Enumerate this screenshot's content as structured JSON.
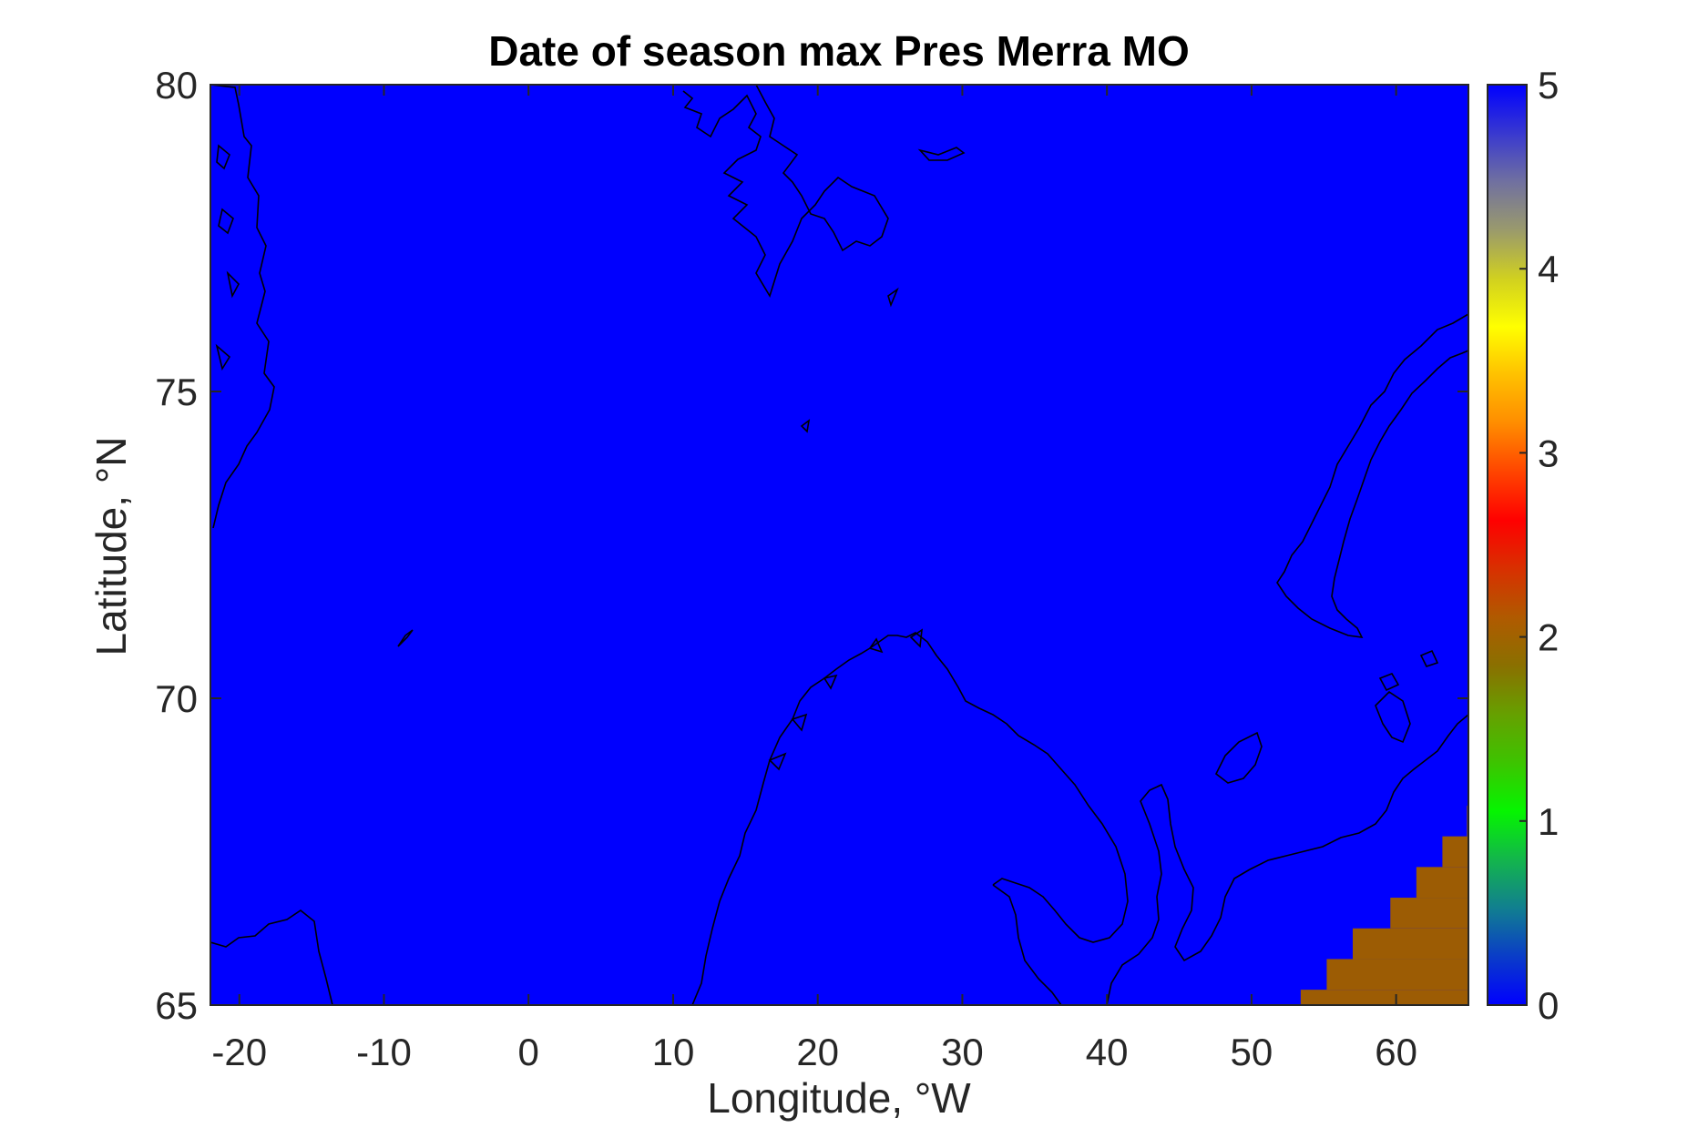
{
  "chart_data": {
    "type": "heatmap",
    "title": "Date of season max Pres Merra MO",
    "xlabel": "Longitude, °W",
    "ylabel": "Latitude, °N",
    "xlim": [
      -22,
      65
    ],
    "ylim": [
      65,
      80
    ],
    "xticks": [
      -20,
      -10,
      0,
      10,
      20,
      30,
      40,
      50,
      60
    ],
    "yticks": [
      65,
      70,
      75,
      80
    ],
    "xtick_labels": [
      "-20",
      "-10",
      "0",
      "10",
      "20",
      "30",
      "40",
      "50",
      "60"
    ],
    "ytick_labels": [
      "65",
      "70",
      "75",
      "80"
    ],
    "background_value": 0,
    "background_color": "#0000fe",
    "highlight_value": 2,
    "highlight_color": "#9c5c04",
    "highlight_cells": [
      {
        "lon": [
          53.4,
          65
        ],
        "lat": [
          65,
          65.25
        ]
      },
      {
        "lon": [
          55.2,
          65
        ],
        "lat": [
          65.25,
          65.75
        ]
      },
      {
        "lon": [
          57.0,
          65
        ],
        "lat": [
          65.75,
          66.25
        ]
      },
      {
        "lon": [
          59.6,
          65
        ],
        "lat": [
          66.25,
          66.75
        ]
      },
      {
        "lon": [
          61.4,
          65
        ],
        "lat": [
          66.75,
          67.25
        ]
      },
      {
        "lon": [
          63.2,
          65
        ],
        "lat": [
          67.25,
          67.75
        ]
      },
      {
        "lon": [
          64.9,
          65
        ],
        "lat": [
          67.75,
          68.25
        ]
      }
    ],
    "colorbar": {
      "min": 0,
      "max": 5,
      "ticks": [
        0,
        1,
        2,
        3,
        4,
        5
      ],
      "tick_labels": [
        "0",
        "1",
        "2",
        "3",
        "4",
        "5"
      ],
      "colormap": [
        "#0000ff",
        "#0a3cc8",
        "#117f90",
        "#13b54c",
        "#05f500",
        "#3dc400",
        "#66a000",
        "#8a7000",
        "#b05a00",
        "#d83000",
        "#ff0000",
        "#ff4400",
        "#ff8c00",
        "#ffc000",
        "#ffff00",
        "#d0d020",
        "#9a9a6c",
        "#7070a0",
        "#3838d0",
        "#0000ff"
      ]
    },
    "grid": false,
    "coastlines": true
  }
}
